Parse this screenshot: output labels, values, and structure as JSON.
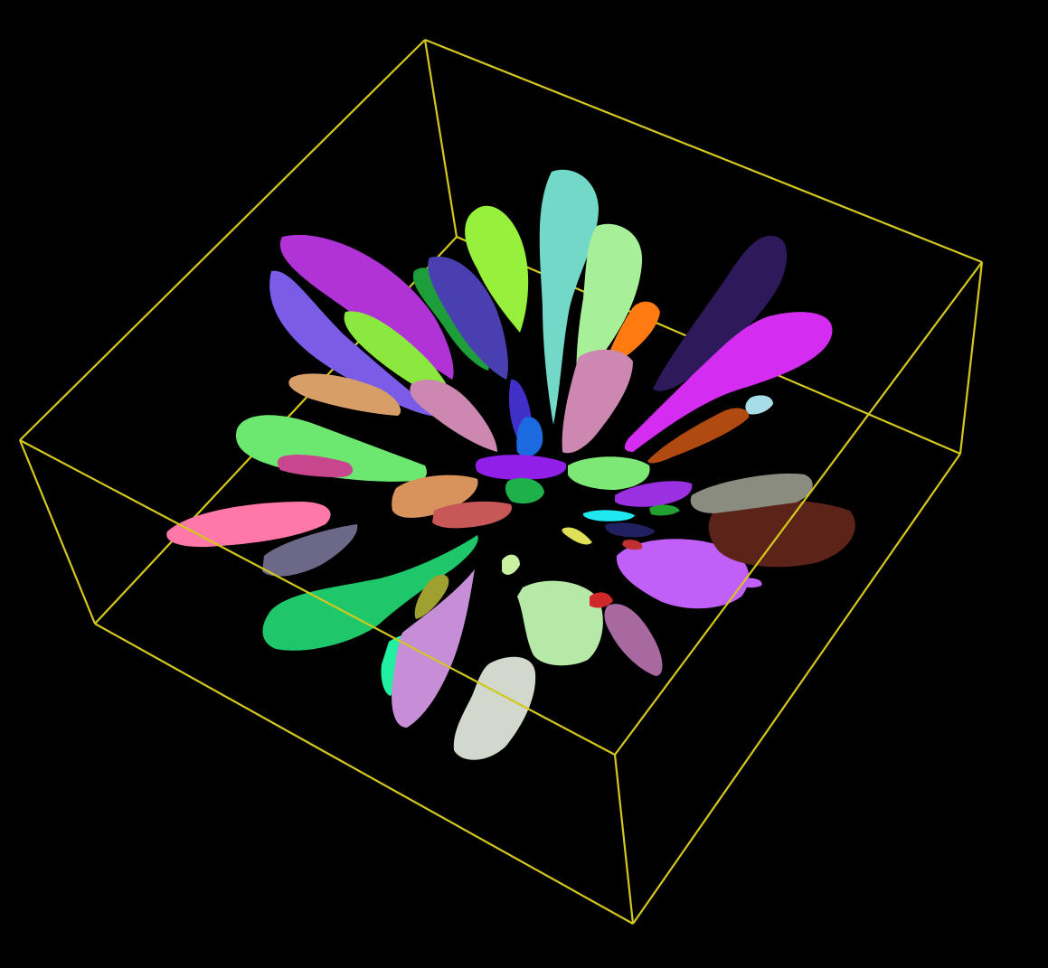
{
  "scene": {
    "background_color": "#000000",
    "bounding_box_color": "#D4C81E",
    "segment_count": 44
  },
  "segments": [
    {
      "id": 1,
      "color": "#B033D6"
    },
    {
      "id": 2,
      "color": "#7A5CE6"
    },
    {
      "id": 3,
      "color": "#8BE83E"
    },
    {
      "id": 4,
      "color": "#1E9E3A"
    },
    {
      "id": 5,
      "color": "#4A3FB0"
    },
    {
      "id": 6,
      "color": "#96F03C"
    },
    {
      "id": 7,
      "color": "#72D8C8"
    },
    {
      "id": 8,
      "color": "#A8F098"
    },
    {
      "id": 9,
      "color": "#FF7A10"
    },
    {
      "id": 10,
      "color": "#2E1A5A"
    },
    {
      "id": 11,
      "color": "#D42CF0"
    },
    {
      "id": 12,
      "color": "#A6DDE6"
    },
    {
      "id": 13,
      "color": "#B04A10"
    },
    {
      "id": 14,
      "color": "#CC88B0"
    },
    {
      "id": 15,
      "color": "#D89E68"
    },
    {
      "id": 16,
      "color": "#6CE870"
    },
    {
      "id": 17,
      "color": "#C8468C"
    },
    {
      "id": 18,
      "color": "#4030C8"
    },
    {
      "id": 19,
      "color": "#1C6AE0"
    },
    {
      "id": 20,
      "color": "#9020E8"
    },
    {
      "id": 21,
      "color": "#1EB04A"
    },
    {
      "id": 22,
      "color": "#7EE876"
    },
    {
      "id": 23,
      "color": "#D8925C"
    },
    {
      "id": 24,
      "color": "#C85858"
    },
    {
      "id": 25,
      "color": "#FF78A8"
    },
    {
      "id": 26,
      "color": "#6C6888"
    },
    {
      "id": 27,
      "color": "#1EC86A"
    },
    {
      "id": 28,
      "color": "#A0A030"
    },
    {
      "id": 29,
      "color": "#20F0A0"
    },
    {
      "id": 30,
      "color": "#C68ED6"
    },
    {
      "id": 31,
      "color": "#D2D8CC"
    },
    {
      "id": 32,
      "color": "#B6E8A8"
    },
    {
      "id": 33,
      "color": "#C8F0A0"
    },
    {
      "id": 34,
      "color": "#A868A0"
    },
    {
      "id": 35,
      "color": "#D02828"
    },
    {
      "id": 36,
      "color": "#C060F8"
    },
    {
      "id": 37,
      "color": "#5C2418"
    },
    {
      "id": 38,
      "color": "#8A8C80"
    },
    {
      "id": 39,
      "color": "#9A30E0"
    },
    {
      "id": 40,
      "color": "#20E8F0"
    },
    {
      "id": 41,
      "color": "#22A030"
    },
    {
      "id": 42,
      "color": "#E0E058"
    },
    {
      "id": 43,
      "color": "#202060"
    },
    {
      "id": 44,
      "color": "#C03030"
    }
  ]
}
